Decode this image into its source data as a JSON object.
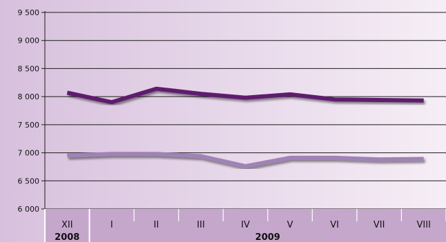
{
  "chart_data": {
    "type": "line",
    "title": "",
    "xlabel": "",
    "ylabel": "",
    "ylim": [
      6000,
      9500
    ],
    "yticks": [
      6000,
      6500,
      7000,
      7500,
      8000,
      8500,
      9000,
      9500
    ],
    "ytick_labels": [
      "6 000",
      "6 500",
      "7 000",
      "7 500",
      "8 000",
      "8 500",
      "9 000",
      "9 500"
    ],
    "categories": [
      "XII",
      "I",
      "II",
      "III",
      "IV",
      "V",
      "VI",
      "VII",
      "VIII"
    ],
    "year_groups": [
      {
        "label": "2008",
        "start": 0,
        "end": 0
      },
      {
        "label": "2009",
        "start": 1,
        "end": 8
      }
    ],
    "grid": true,
    "series": [
      {
        "color": "#5e1f6e",
        "values": [
          8070,
          7900,
          8140,
          8050,
          7980,
          8040,
          7950,
          7940,
          7930
        ]
      },
      {
        "color": "#a083b6",
        "values": [
          6950,
          6980,
          6980,
          6940,
          6760,
          6910,
          6910,
          6880,
          6890
        ]
      }
    ],
    "colors": {
      "background_left": "#d7c0dd",
      "background_right": "#f6eef6",
      "axis_band": "#c5a7cc",
      "grid": "#1a1a1a"
    }
  }
}
